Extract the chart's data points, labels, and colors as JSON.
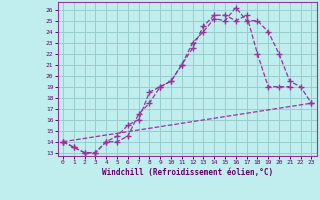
{
  "xlabel": "Windchill (Refroidissement éolien,°C)",
  "bg_color": "#c0eeee",
  "grid_color": "#99cccc",
  "line_color": "#993399",
  "xlim": [
    -0.5,
    23.5
  ],
  "ylim": [
    12.7,
    26.7
  ],
  "xticks": [
    0,
    1,
    2,
    3,
    4,
    5,
    6,
    7,
    8,
    9,
    10,
    11,
    12,
    13,
    14,
    15,
    16,
    17,
    18,
    19,
    20,
    21,
    22,
    23
  ],
  "yticks": [
    13,
    14,
    15,
    16,
    17,
    18,
    19,
    20,
    21,
    22,
    23,
    24,
    25,
    26
  ],
  "line1_x": [
    0,
    1,
    2,
    3,
    4,
    5,
    6,
    7,
    8,
    9,
    10,
    11,
    12,
    13,
    14,
    15,
    16,
    17,
    18,
    19,
    20,
    21,
    22,
    23
  ],
  "line1_y": [
    14.0,
    13.5,
    13.0,
    13.0,
    14.0,
    14.0,
    14.5,
    16.5,
    17.5,
    19.0,
    19.5,
    21.0,
    23.0,
    24.0,
    25.2,
    25.0,
    26.2,
    25.0,
    25.0,
    24.0,
    22.0,
    19.5,
    19.0,
    17.5
  ],
  "line2_x": [
    0,
    1,
    2,
    3,
    4,
    5,
    6,
    7,
    8,
    9,
    10,
    11,
    12,
    13,
    14,
    15,
    16,
    17,
    18,
    19,
    20,
    21
  ],
  "line2_y": [
    14.0,
    13.5,
    13.0,
    13.0,
    14.0,
    14.5,
    15.5,
    16.0,
    18.5,
    19.0,
    19.5,
    21.0,
    22.5,
    24.5,
    25.5,
    25.5,
    25.0,
    25.5,
    22.0,
    19.0,
    19.0,
    19.0
  ],
  "line3_x": [
    0,
    23
  ],
  "line3_y": [
    14.0,
    17.5
  ]
}
